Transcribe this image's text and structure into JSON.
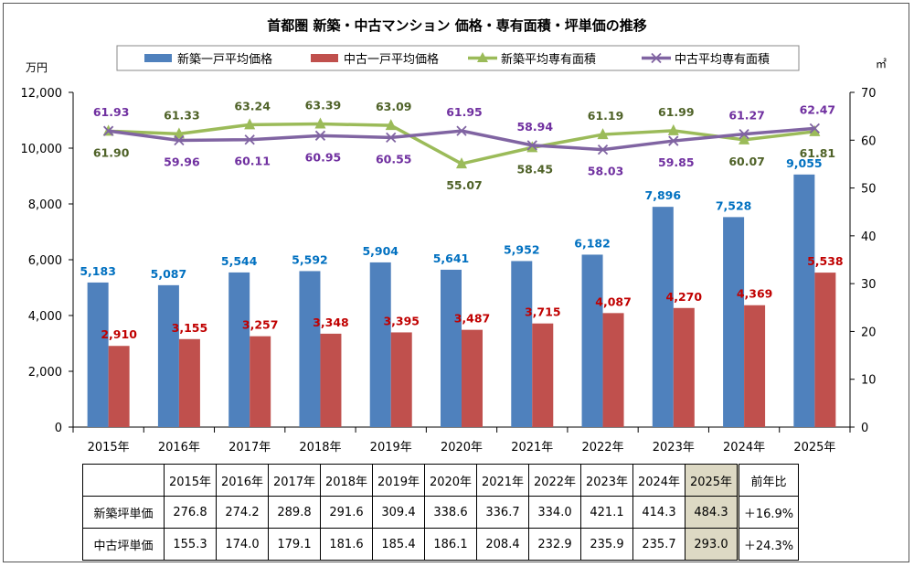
{
  "chart_data": {
    "type": "bar+line",
    "title": "首都圏  新築・中古マンション  価格・専有面積・坪単価の推移",
    "categories": [
      "2015年",
      "2016年",
      "2017年",
      "2018年",
      "2019年",
      "2020年",
      "2021年",
      "2022年",
      "2023年",
      "2024年",
      "2025年"
    ],
    "y_left": {
      "label": "万円",
      "ylim": [
        0,
        12000
      ],
      "ticks": [
        "0",
        "2,000",
        "4,000",
        "6,000",
        "8,000",
        "10,000",
        "12,000"
      ]
    },
    "y_right": {
      "label": "㎡",
      "ylim": [
        0,
        70
      ],
      "ticks": [
        "0",
        "10",
        "20",
        "30",
        "40",
        "50",
        "60",
        "70"
      ]
    },
    "legend": "top",
    "series": [
      {
        "name": "新築一戸平均価格",
        "type": "bar",
        "axis": "left",
        "color": "#4f81bd",
        "label_color": "#0070c0",
        "values": [
          5183,
          5087,
          5544,
          5592,
          5904,
          5641,
          5952,
          6182,
          7896,
          7528,
          9055
        ],
        "labels": [
          "5,183",
          "5,087",
          "5,544",
          "5,592",
          "5,904",
          "5,641",
          "5,952",
          "6,182",
          "7,896",
          "7,528",
          "9,055"
        ]
      },
      {
        "name": "中古一戸平均価格",
        "type": "bar",
        "axis": "left",
        "color": "#c0504d",
        "label_color": "#c00000",
        "values": [
          2910,
          3155,
          3257,
          3348,
          3395,
          3487,
          3715,
          4087,
          4270,
          4369,
          5538
        ],
        "labels": [
          "2,910",
          "3,155",
          "3,257",
          "3,348",
          "3,395",
          "3,487",
          "3,715",
          "4,087",
          "4,270",
          "4,369",
          "5,538"
        ]
      },
      {
        "name": "新築平均専有面積",
        "type": "line",
        "axis": "right",
        "color": "#9bbb59",
        "label_color": "#4f6228",
        "marker": "triangle",
        "values": [
          61.9,
          61.33,
          63.24,
          63.39,
          63.09,
          55.07,
          58.45,
          61.19,
          61.99,
          60.07,
          61.81
        ],
        "labels": [
          "61.90",
          "61.33",
          "63.24",
          "63.39",
          "63.09",
          "55.07",
          "58.45",
          "61.19",
          "61.99",
          "60.07",
          "61.81"
        ]
      },
      {
        "name": "中古平均専有面積",
        "type": "line",
        "axis": "right",
        "color": "#8064a2",
        "label_color": "#7030a0",
        "marker": "x",
        "values": [
          61.93,
          59.96,
          60.11,
          60.95,
          60.55,
          61.95,
          58.94,
          58.03,
          59.85,
          61.27,
          62.47
        ],
        "labels": [
          "61.93",
          "59.96",
          "60.11",
          "60.95",
          "60.55",
          "61.95",
          "58.94",
          "58.03",
          "59.85",
          "61.27",
          "62.47"
        ]
      }
    ]
  },
  "table": {
    "headers": [
      "2015年",
      "2016年",
      "2017年",
      "2018年",
      "2019年",
      "2020年",
      "2021年",
      "2022年",
      "2023年",
      "2024年",
      "2025年"
    ],
    "change_header": "前年比",
    "highlight_color": "#ddd9c4",
    "rows": [
      {
        "label": "新築坪単価",
        "values": [
          "276.8",
          "274.2",
          "289.8",
          "291.6",
          "309.4",
          "338.6",
          "336.7",
          "334.0",
          "421.1",
          "414.3",
          "484.3"
        ],
        "change": "＋16.9%"
      },
      {
        "label": "中古坪単価",
        "values": [
          "155.3",
          "174.0",
          "179.1",
          "181.6",
          "185.4",
          "186.1",
          "208.4",
          "232.9",
          "235.9",
          "235.7",
          "293.0"
        ],
        "change": "＋24.3%"
      }
    ]
  }
}
